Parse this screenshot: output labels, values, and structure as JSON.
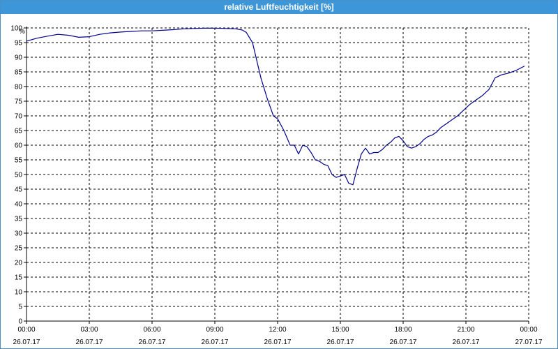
{
  "window": {
    "title": "relative Luftfeuchtigkeit [%]"
  },
  "colors": {
    "titlebar": "#3c96d8",
    "line": "#00008b",
    "grid": "#000000"
  },
  "chart_data": {
    "type": "line",
    "title": "relative Luftfeuchtigkeit [%]",
    "ylabel": "%",
    "xlabel": "",
    "ylim": [
      0,
      100
    ],
    "xlim": [
      0,
      24
    ],
    "grid": true,
    "grid_style": "dashed",
    "y_ticks": [
      0,
      5,
      10,
      15,
      20,
      25,
      30,
      35,
      40,
      45,
      50,
      55,
      60,
      65,
      70,
      75,
      80,
      85,
      90,
      95,
      100
    ],
    "x_ticks": [
      {
        "time": "00:00",
        "date": "26.07.17"
      },
      {
        "time": "03:00",
        "date": "26.07.17"
      },
      {
        "time": "06:00",
        "date": "26.07.17"
      },
      {
        "time": "09:00",
        "date": "26.07.17"
      },
      {
        "time": "12:00",
        "date": "26.07.17"
      },
      {
        "time": "15:00",
        "date": "26.07.17"
      },
      {
        "time": "18:00",
        "date": "26.07.17"
      },
      {
        "time": "21:00",
        "date": "26.07.17"
      },
      {
        "time": "00:00",
        "date": "27.07.17"
      }
    ],
    "series": [
      {
        "x": [
          0,
          0.5,
          1.0,
          1.5,
          2.0,
          2.5,
          3.0,
          3.5,
          4.0,
          4.5,
          5.0,
          5.5,
          6.0,
          6.5,
          7.0,
          7.5,
          8.0,
          8.5,
          9.0,
          9.5,
          10.0,
          10.3,
          10.5,
          10.8,
          11.0,
          11.2,
          11.5,
          11.8,
          12.0,
          12.3,
          12.6,
          12.8,
          13.0,
          13.2,
          13.4,
          13.6,
          13.8,
          14.0,
          14.2,
          14.4,
          14.6,
          14.8,
          15.0,
          15.2,
          15.4,
          15.6,
          15.8,
          16.0,
          16.2,
          16.4,
          16.6,
          16.8,
          17.0,
          17.2,
          17.4,
          17.6,
          17.8,
          18.0,
          18.2,
          18.4,
          18.6,
          18.8,
          19.0,
          19.2,
          19.4,
          19.6,
          19.8,
          20.0,
          20.3,
          20.6,
          20.9,
          21.2,
          21.5,
          21.8,
          22.1,
          22.4,
          22.7,
          23.0,
          23.4,
          23.8
        ],
        "y": [
          95.5,
          96.5,
          97.2,
          97.8,
          97.5,
          96.8,
          97.0,
          97.8,
          98.3,
          98.6,
          98.8,
          99.0,
          99.0,
          99.2,
          99.4,
          99.7,
          99.8,
          99.9,
          99.9,
          99.8,
          99.7,
          99.3,
          98.5,
          95.0,
          89.0,
          83.0,
          76.0,
          70.0,
          69.0,
          65.0,
          60.0,
          60.0,
          57.0,
          60.0,
          59.5,
          57.5,
          55.0,
          54.5,
          53.5,
          53.0,
          50.0,
          49.0,
          49.5,
          50.0,
          47.0,
          46.5,
          52.0,
          57.0,
          59.0,
          57.0,
          57.5,
          57.5,
          58.5,
          60.0,
          61.0,
          62.5,
          63.0,
          61.5,
          59.5,
          59.0,
          59.5,
          60.5,
          62.0,
          63.0,
          63.5,
          64.5,
          66.0,
          67.0,
          68.5,
          70.0,
          72.0,
          74.0,
          75.5,
          77.0,
          79.0,
          83.0,
          84.0,
          84.5,
          85.5,
          87.0
        ]
      }
    ]
  }
}
